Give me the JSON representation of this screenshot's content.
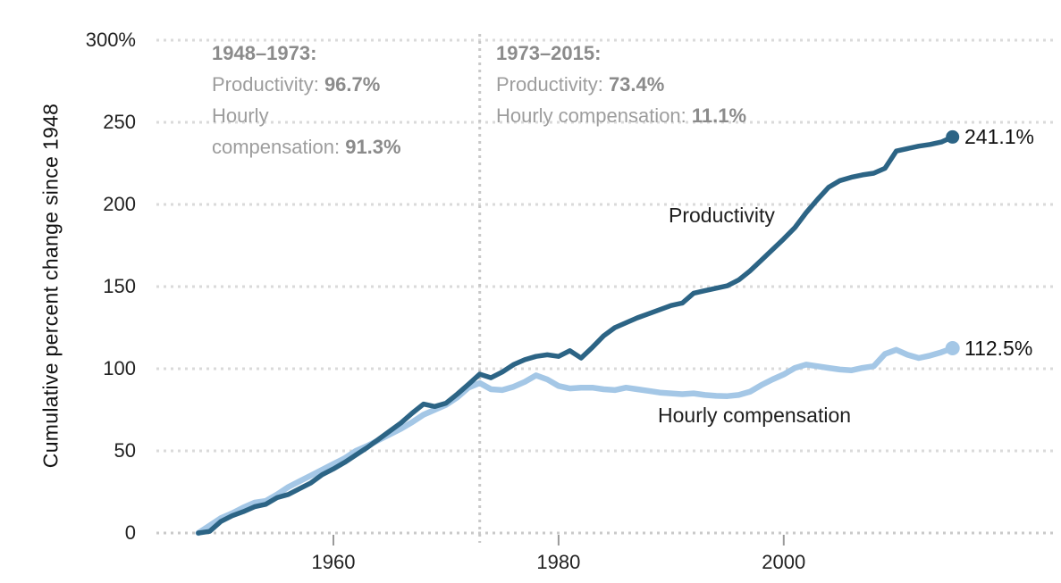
{
  "chart_data": {
    "type": "line",
    "ylabel": "Cumulative percent change since 1948",
    "xlim": [
      1948,
      2015
    ],
    "ylim": [
      0,
      300
    ],
    "grid": "horizontal-dotted",
    "vline_year": 1973,
    "x_ticks": [
      1960,
      1980,
      2000
    ],
    "y_ticks": [
      {
        "value": 0,
        "label": "0"
      },
      {
        "value": 50,
        "label": "50"
      },
      {
        "value": 100,
        "label": "100"
      },
      {
        "value": 150,
        "label": "150"
      },
      {
        "value": 200,
        "label": "200"
      },
      {
        "value": 250,
        "label": "250"
      },
      {
        "value": 300,
        "label": "300%"
      }
    ],
    "years": [
      1948,
      1949,
      1950,
      1951,
      1952,
      1953,
      1954,
      1955,
      1956,
      1957,
      1958,
      1959,
      1960,
      1961,
      1962,
      1963,
      1964,
      1965,
      1966,
      1967,
      1968,
      1969,
      1970,
      1971,
      1972,
      1973,
      1974,
      1975,
      1976,
      1977,
      1978,
      1979,
      1980,
      1981,
      1982,
      1983,
      1984,
      1985,
      1986,
      1987,
      1988,
      1989,
      1990,
      1991,
      1992,
      1993,
      1994,
      1995,
      1996,
      1997,
      1998,
      1999,
      2000,
      2001,
      2002,
      2003,
      2004,
      2005,
      2006,
      2007,
      2008,
      2009,
      2010,
      2011,
      2012,
      2013,
      2014,
      2015
    ],
    "series": [
      {
        "key": "productivity",
        "name": "Productivity",
        "color": "#2c6485",
        "end_label": "241.1%",
        "values": [
          0,
          1,
          7,
          10.5,
          13,
          16,
          17.5,
          21.5,
          23.5,
          27,
          30.5,
          35.5,
          39,
          43,
          47.5,
          52,
          57,
          62,
          67,
          73,
          78.5,
          77,
          79,
          84.5,
          90.5,
          96.7,
          94.5,
          98,
          102.5,
          105.5,
          107.5,
          108.5,
          107.5,
          111,
          106.5,
          113,
          120,
          125,
          128,
          131,
          133.5,
          136,
          138.5,
          140,
          146,
          147.5,
          149,
          150.5,
          154,
          159.5,
          166,
          172.5,
          179,
          186,
          195,
          203,
          210.5,
          214.5,
          216.5,
          218,
          219,
          222,
          232.5,
          234,
          235.5,
          236.5,
          238,
          241.1
        ]
      },
      {
        "key": "hourly-compensation",
        "name": "Hourly compensation",
        "color": "#a4c7e6",
        "end_label": "112.5%",
        "values": [
          0,
          4.5,
          9,
          12,
          15.5,
          18.5,
          19.5,
          23.5,
          28,
          31.5,
          35,
          38.5,
          42,
          45.5,
          50,
          53,
          56.5,
          60,
          63.5,
          67.5,
          72,
          75,
          78,
          82.5,
          88.5,
          91.3,
          87.5,
          87,
          89,
          92,
          96,
          93.5,
          89.5,
          88,
          88.5,
          88.5,
          87.5,
          87,
          88.5,
          87.5,
          86.5,
          85.5,
          85,
          84.5,
          85,
          84,
          83.5,
          83.3,
          84,
          86,
          90,
          93.5,
          96.5,
          100.5,
          102.5,
          101.5,
          100.5,
          99.5,
          99,
          100.5,
          101.5,
          109,
          111.5,
          108.5,
          106.5,
          108,
          110,
          112.5
        ]
      }
    ],
    "annotations": [
      {
        "title": "1948–1973:",
        "line1_label": "Productivity: ",
        "line1_value": "96.7%",
        "line2_label": "Hourly",
        "line3_label": "compensation: ",
        "line3_value": "91.3%"
      },
      {
        "title": "1973–2015:",
        "line1_label": "Productivity: ",
        "line1_value": "73.4%",
        "line2_label": "Hourly compensation: ",
        "line2_value": "11.1%"
      }
    ],
    "colors": {
      "grid": "#dadada",
      "zero_line": "#c9c9c9",
      "divider": "#c8c8c8",
      "tick_text": "#222222",
      "annotation_text": "#9d9d9d",
      "annotation_bold": "#8b8b8b"
    }
  }
}
